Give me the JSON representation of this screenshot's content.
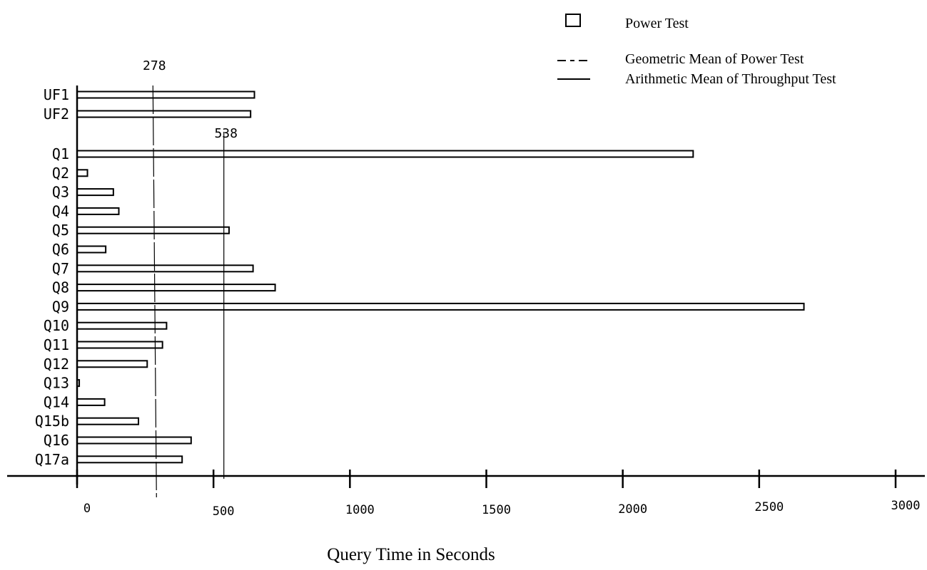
{
  "chart_data": {
    "type": "bar",
    "orientation": "horizontal",
    "title": "",
    "xlabel": "Query Time in Seconds",
    "ylabel": "",
    "xlim": [
      0,
      3000
    ],
    "x_ticks": [
      0,
      500,
      1000,
      1500,
      2000,
      2500,
      3000
    ],
    "grid": false,
    "legend_position": "top-right",
    "colors": {
      "bar_fill": "#ffffff",
      "stroke": "#000000"
    },
    "categories": [
      "UF1",
      "UF2",
      "Q1",
      "Q2",
      "Q3",
      "Q4",
      "Q5",
      "Q6",
      "Q7",
      "Q8",
      "Q9",
      "Q10",
      "Q11",
      "Q12",
      "Q13",
      "Q14",
      "Q15b",
      "Q16",
      "Q17a"
    ],
    "series": [
      {
        "name": "Power Test",
        "values": [
          650,
          636,
          2258,
          38,
          133,
          153,
          557,
          105,
          645,
          726,
          2664,
          328,
          313,
          257,
          8,
          101,
          225,
          418,
          385
        ]
      }
    ],
    "reference_lines": [
      {
        "name": "Geometric Mean of Power Test",
        "value": 278,
        "label": "278",
        "style": "dashed"
      },
      {
        "name": "Arithmetic Mean of Throughput Test",
        "value": 538,
        "label": "538",
        "style": "solid"
      }
    ]
  }
}
